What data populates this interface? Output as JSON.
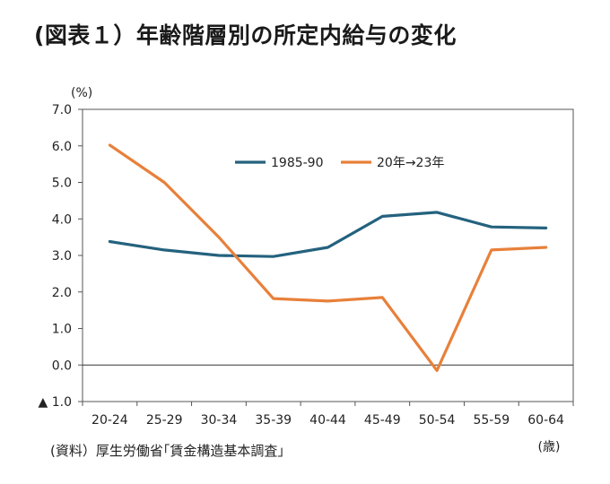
{
  "title": "(図表１）年齢階層別の所定内給与の変化",
  "source": "(資料）厚生労働省｢賃金構造基本調査｣",
  "chart_data": {
    "type": "line",
    "ylabel": "(%)",
    "xlabel": "(歳)",
    "categories": [
      "20-24",
      "25-29",
      "30-34",
      "35-39",
      "40-44",
      "45-49",
      "50-54",
      "55-59",
      "60-64"
    ],
    "ylim": [
      -1.0,
      7.0
    ],
    "y_ticks": [
      7.0,
      6.0,
      5.0,
      4.0,
      3.0,
      2.0,
      1.0,
      0.0,
      -1.0
    ],
    "y_tick_labels": [
      "7.0",
      "6.0",
      "5.0",
      "4.0",
      "3.0",
      "2.0",
      "1.0",
      "0.0",
      "▲ 1.0"
    ],
    "grid": false,
    "legend_position": "top-right",
    "series": [
      {
        "name": "1985-90",
        "color": "#24627e",
        "values": [
          3.38,
          3.15,
          3.0,
          2.97,
          3.22,
          4.07,
          4.18,
          3.78,
          3.75
        ]
      },
      {
        "name": "20年→23年",
        "color": "#e8803a",
        "values": [
          6.02,
          5.0,
          3.5,
          1.82,
          1.75,
          1.85,
          -0.15,
          3.15,
          3.22
        ]
      }
    ]
  }
}
